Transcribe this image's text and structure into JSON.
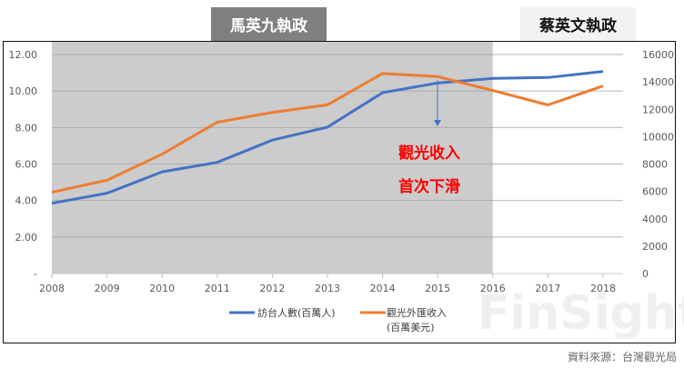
{
  "eras": {
    "ma": "馬英九執政",
    "tsai": "蔡英文執政"
  },
  "annotation": {
    "line1": "觀光收入",
    "line2": "首次下滑"
  },
  "source": "資料來源：台灣觀光局",
  "watermark": "FinSight",
  "colors": {
    "visitors": "#4472c4",
    "revenue": "#ed7d31",
    "shade": "#cccccc",
    "annotation": "#ff0000"
  },
  "chart_data": {
    "type": "line",
    "x": [
      "2008",
      "2009",
      "2010",
      "2011",
      "2012",
      "2013",
      "2014",
      "2015",
      "2016",
      "2017",
      "2018"
    ],
    "y_left": {
      "range": [
        0,
        12
      ],
      "ticks": [
        "-",
        "2.00",
        "4.00",
        "6.00",
        "8.00",
        "10.00",
        "12.00"
      ]
    },
    "y_right": {
      "range": [
        0,
        16000
      ],
      "ticks": [
        "0",
        "2000",
        "4000",
        "6000",
        "8000",
        "10000",
        "12000",
        "14000",
        "16000"
      ]
    },
    "grid": true,
    "shaded_range": [
      "2008",
      "2016"
    ],
    "legend_placement": "bottom",
    "series": [
      {
        "name": "訪台人數(百萬人)",
        "axis": "left",
        "values": [
          3.85,
          4.4,
          5.57,
          6.09,
          7.31,
          8.02,
          9.91,
          10.44,
          10.69,
          10.74,
          11.07
        ]
      },
      {
        "name": "觀光外匯收入",
        "name_line2": "(百萬美元)",
        "axis": "right",
        "values": [
          5936,
          6816,
          8719,
          11054,
          11769,
          12322,
          14615,
          14388,
          13374,
          12315,
          13705
        ]
      }
    ]
  }
}
